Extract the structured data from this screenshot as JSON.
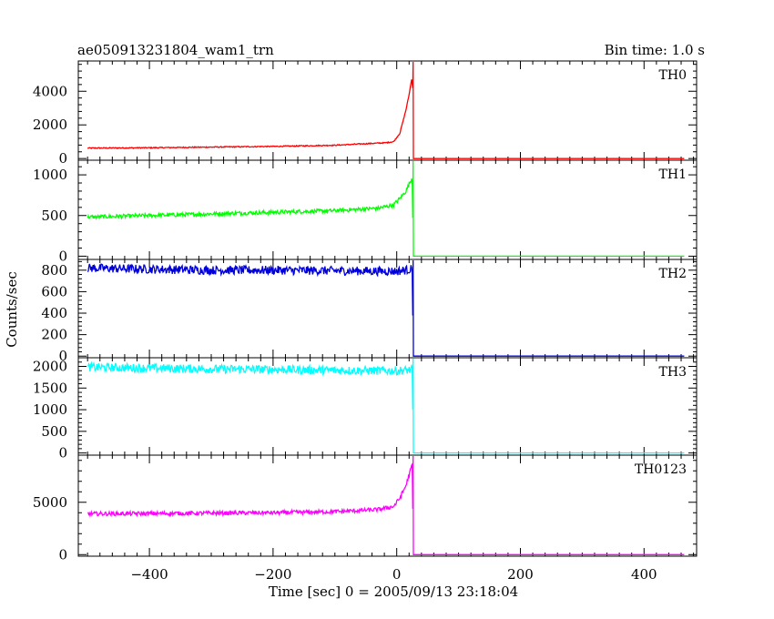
{
  "chart_data": {
    "type": "line",
    "title": "ae050913231804_wam1_trn",
    "subtitle": "Bin time: 1.0 s",
    "xlabel": "Time [sec] 0 = 2005/09/13 23:18:04",
    "ylabel": "Counts/sec",
    "xlim": [
      -515,
      485
    ],
    "x_ticks": [
      -400,
      -200,
      0,
      200,
      400
    ],
    "x_range_data": [
      -500,
      465
    ],
    "trigger_drop_x": 27,
    "grid": false,
    "panels": [
      {
        "name": "TH0",
        "color": "#ff0000",
        "ylim": [
          -100,
          5800
        ],
        "y_ticks": [
          0,
          2000,
          4000
        ],
        "points": [
          [
            -500,
            620
          ],
          [
            -400,
            640
          ],
          [
            -300,
            680
          ],
          [
            -200,
            720
          ],
          [
            -100,
            790
          ],
          [
            -40,
            900
          ],
          [
            -20,
            930
          ],
          [
            -5,
            1000
          ],
          [
            5,
            1500
          ],
          [
            10,
            2200
          ],
          [
            15,
            2900
          ],
          [
            20,
            3800
          ],
          [
            24,
            4700
          ],
          [
            26,
            4200
          ],
          [
            27,
            0
          ],
          [
            465,
            0
          ]
        ]
      },
      {
        "name": "TH1",
        "color": "#00ff00",
        "ylim": [
          -40,
          1180
        ],
        "y_ticks": [
          0,
          500,
          1000
        ],
        "points": [
          [
            -500,
            480
          ],
          [
            -400,
            500
          ],
          [
            -300,
            520
          ],
          [
            -200,
            540
          ],
          [
            -100,
            560
          ],
          [
            -30,
            590
          ],
          [
            -5,
            630
          ],
          [
            5,
            710
          ],
          [
            15,
            800
          ],
          [
            22,
            920
          ],
          [
            25,
            960
          ],
          [
            27,
            0
          ],
          [
            465,
            0
          ]
        ]
      },
      {
        "name": "TH2",
        "color": "#0000dd",
        "ylim": [
          -15,
          900
        ],
        "y_ticks": [
          0,
          200,
          400,
          600,
          800
        ],
        "points": [
          [
            -500,
            820
          ],
          [
            -400,
            810
          ],
          [
            -300,
            800
          ],
          [
            -200,
            800
          ],
          [
            -100,
            795
          ],
          [
            0,
            790
          ],
          [
            25,
            810
          ],
          [
            27,
            0
          ],
          [
            465,
            0
          ]
        ]
      },
      {
        "name": "TH3",
        "color": "#00ffff",
        "ylim": [
          -50,
          2200
        ],
        "y_ticks": [
          0,
          500,
          1000,
          1500,
          2000
        ],
        "points": [
          [
            -500,
            1980
          ],
          [
            -400,
            1960
          ],
          [
            -300,
            1940
          ],
          [
            -200,
            1930
          ],
          [
            -100,
            1910
          ],
          [
            0,
            1900
          ],
          [
            25,
            1920
          ],
          [
            27,
            0
          ],
          [
            465,
            0
          ]
        ]
      },
      {
        "name": "TH0123",
        "color": "#ff00ff",
        "ylim": [
          -150,
          9500
        ],
        "y_ticks": [
          0,
          5000
        ],
        "points": [
          [
            -500,
            3900
          ],
          [
            -400,
            3920
          ],
          [
            -300,
            3960
          ],
          [
            -200,
            4000
          ],
          [
            -100,
            4100
          ],
          [
            -30,
            4300
          ],
          [
            -5,
            4600
          ],
          [
            5,
            5400
          ],
          [
            15,
            6600
          ],
          [
            22,
            8000
          ],
          [
            25,
            8600
          ],
          [
            27,
            0
          ],
          [
            465,
            0
          ]
        ]
      }
    ]
  }
}
